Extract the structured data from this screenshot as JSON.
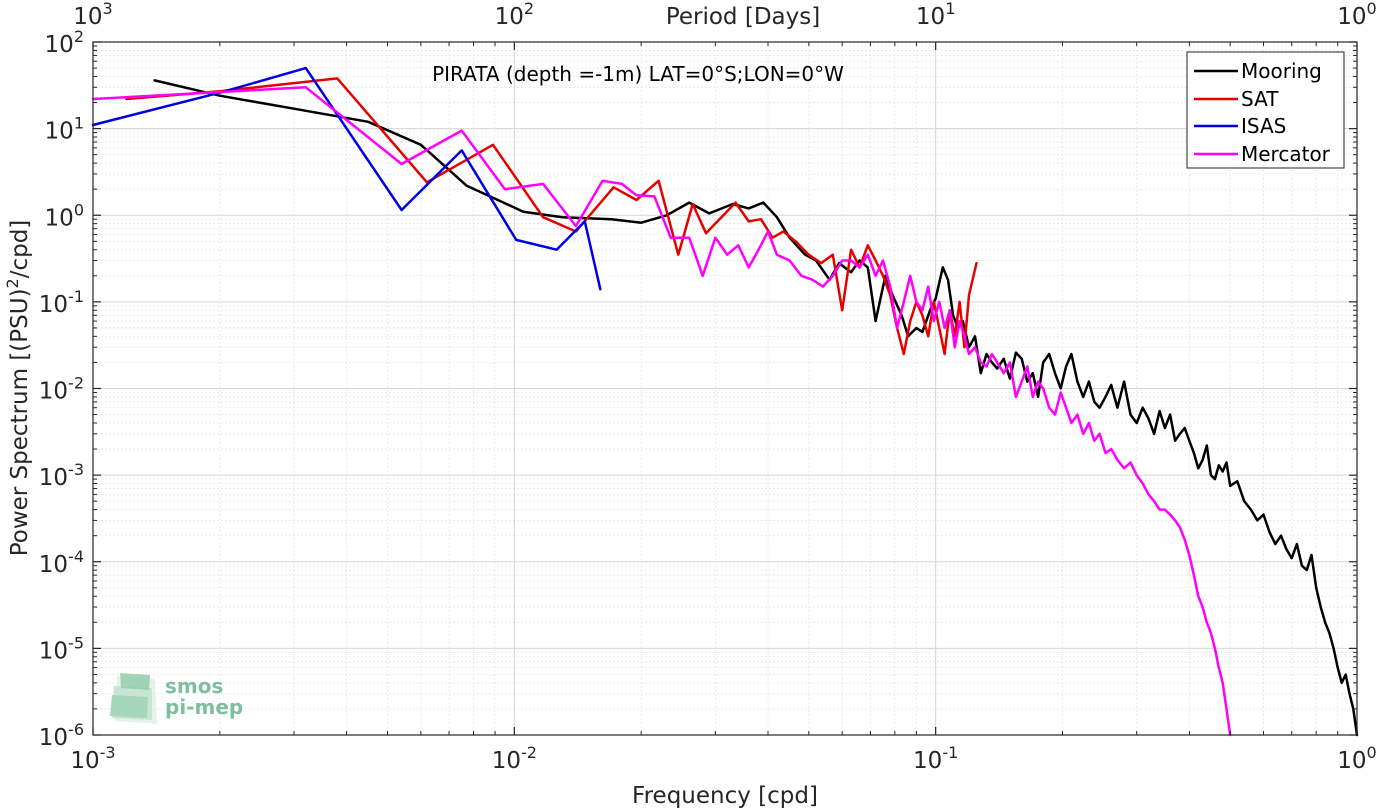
{
  "chart_data": {
    "type": "line",
    "title": "PIRATA (depth =-1m) LAT=0°S;LON=0°W",
    "xlabel": "Frequency [cpd]",
    "x2label": "Period [Days]",
    "ylabel_main": "Power Spectrum [(PSU)",
    "ylabel_sup": "2",
    "ylabel_tail": "/cpd]",
    "xscale": "log",
    "yscale": "log",
    "xlim": [
      0.001,
      1
    ],
    "ylim": [
      1e-06,
      100
    ],
    "grid": true,
    "legend_position": "top-right",
    "x_ticks": [
      {
        "value": 0.001,
        "base": "10",
        "exp": "-3"
      },
      {
        "value": 0.01,
        "base": "10",
        "exp": "-2"
      },
      {
        "value": 0.1,
        "base": "10",
        "exp": "-1"
      },
      {
        "value": 1,
        "base": "10",
        "exp": "0"
      }
    ],
    "x2_ticks": [
      {
        "value": 0.001,
        "base": "10",
        "exp": "3"
      },
      {
        "value": 0.01,
        "base": "10",
        "exp": "2"
      },
      {
        "value": 0.1,
        "base": "10",
        "exp": "1"
      },
      {
        "value": 1,
        "base": "10",
        "exp": "0"
      }
    ],
    "y_ticks": [
      {
        "value": 100,
        "base": "10",
        "exp": "2"
      },
      {
        "value": 10,
        "base": "10",
        "exp": "1"
      },
      {
        "value": 1,
        "base": "10",
        "exp": "0"
      },
      {
        "value": 0.1,
        "base": "10",
        "exp": "-1"
      },
      {
        "value": 0.01,
        "base": "10",
        "exp": "-2"
      },
      {
        "value": 0.001,
        "base": "10",
        "exp": "-3"
      },
      {
        "value": 0.0001,
        "base": "10",
        "exp": "-4"
      },
      {
        "value": 1e-05,
        "base": "10",
        "exp": "-5"
      },
      {
        "value": 1e-06,
        "base": "10",
        "exp": "-6"
      }
    ],
    "series": [
      {
        "name": "Mooring",
        "color": "#000000",
        "x": [
          0.0014,
          0.002,
          0.003,
          0.0045,
          0.006,
          0.0077,
          0.0105,
          0.013,
          0.017,
          0.02,
          0.023,
          0.026,
          0.029,
          0.033,
          0.036,
          0.039,
          0.042,
          0.045,
          0.049,
          0.052,
          0.056,
          0.059,
          0.063,
          0.066,
          0.069,
          0.072,
          0.076,
          0.079,
          0.083,
          0.086,
          0.09,
          0.093,
          0.097,
          0.1,
          0.104,
          0.107,
          0.11,
          0.113,
          0.116,
          0.12,
          0.124,
          0.128,
          0.132,
          0.136,
          0.14,
          0.145,
          0.15,
          0.155,
          0.16,
          0.165,
          0.17,
          0.175,
          0.18,
          0.186,
          0.192,
          0.198,
          0.204,
          0.21,
          0.217,
          0.224,
          0.231,
          0.238,
          0.245,
          0.253,
          0.261,
          0.27,
          0.28,
          0.29,
          0.3,
          0.31,
          0.32,
          0.33,
          0.34,
          0.35,
          0.36,
          0.37,
          0.38,
          0.39,
          0.4,
          0.41,
          0.42,
          0.43,
          0.44,
          0.45,
          0.46,
          0.47,
          0.48,
          0.49,
          0.5,
          0.52,
          0.54,
          0.56,
          0.58,
          0.6,
          0.62,
          0.64,
          0.66,
          0.68,
          0.7,
          0.72,
          0.74,
          0.76,
          0.78,
          0.8,
          0.82,
          0.84,
          0.86,
          0.88,
          0.9,
          0.92,
          0.94,
          0.96,
          0.98,
          1.0
        ],
        "y": [
          36,
          24,
          17,
          12,
          6.5,
          2.2,
          1.1,
          0.95,
          0.9,
          0.82,
          1.0,
          1.4,
          1.05,
          1.35,
          1.2,
          1.4,
          0.95,
          0.55,
          0.35,
          0.3,
          0.18,
          0.28,
          0.22,
          0.3,
          0.25,
          0.06,
          0.2,
          0.12,
          0.07,
          0.04,
          0.05,
          0.045,
          0.08,
          0.11,
          0.25,
          0.18,
          0.07,
          0.05,
          0.06,
          0.03,
          0.04,
          0.015,
          0.025,
          0.02,
          0.017,
          0.022,
          0.013,
          0.026,
          0.022,
          0.012,
          0.015,
          0.008,
          0.02,
          0.025,
          0.015,
          0.01,
          0.018,
          0.025,
          0.012,
          0.008,
          0.012,
          0.007,
          0.006,
          0.008,
          0.011,
          0.006,
          0.012,
          0.005,
          0.004,
          0.006,
          0.0045,
          0.003,
          0.0055,
          0.0035,
          0.005,
          0.0025,
          0.003,
          0.0035,
          0.0025,
          0.0018,
          0.0012,
          0.0015,
          0.0022,
          0.001,
          0.0009,
          0.0013,
          0.0011,
          0.0014,
          0.00075,
          0.00085,
          0.0005,
          0.0004,
          0.0003,
          0.00035,
          0.00022,
          0.00016,
          0.0002,
          0.00014,
          0.00011,
          0.00016,
          9e-05,
          8e-05,
          0.00012,
          5e-05,
          3e-05,
          2e-05,
          1.5e-05,
          1e-05,
          6e-06,
          4e-06,
          5e-06,
          3e-06,
          2e-06,
          1e-06
        ]
      },
      {
        "name": "SAT",
        "color": "#e60000",
        "x": [
          0.0012,
          0.002,
          0.0038,
          0.0062,
          0.0089,
          0.0117,
          0.014,
          0.0172,
          0.0195,
          0.022,
          0.0245,
          0.0265,
          0.0285,
          0.031,
          0.0335,
          0.036,
          0.0385,
          0.041,
          0.0435,
          0.0465,
          0.05,
          0.0535,
          0.057,
          0.06,
          0.063,
          0.066,
          0.069,
          0.072,
          0.075,
          0.078,
          0.081,
          0.084,
          0.087,
          0.09,
          0.093,
          0.096,
          0.099,
          0.102,
          0.105,
          0.108,
          0.111,
          0.114,
          0.117,
          0.12,
          0.125
        ],
        "y": [
          22,
          27,
          38,
          2.4,
          6.5,
          0.95,
          0.65,
          2.1,
          1.5,
          2.5,
          0.35,
          1.35,
          0.62,
          0.95,
          1.4,
          0.85,
          0.9,
          0.55,
          0.65,
          0.5,
          0.35,
          0.28,
          0.35,
          0.08,
          0.4,
          0.25,
          0.45,
          0.3,
          0.2,
          0.12,
          0.05,
          0.025,
          0.06,
          0.1,
          0.07,
          0.04,
          0.1,
          0.05,
          0.025,
          0.08,
          0.04,
          0.1,
          0.03,
          0.12,
          0.28
        ]
      },
      {
        "name": "ISAS",
        "color": "#0000e6",
        "x": [
          0.001,
          0.002,
          0.0032,
          0.0054,
          0.0075,
          0.0101,
          0.0126,
          0.0147,
          0.016
        ],
        "y": [
          11,
          26,
          50,
          1.15,
          5.6,
          0.52,
          0.4,
          0.85,
          0.14
        ]
      },
      {
        "name": "Mercator",
        "color": "#ff00ff",
        "x": [
          0.001,
          0.0032,
          0.0054,
          0.0075,
          0.0095,
          0.0117,
          0.014,
          0.0162,
          0.018,
          0.0195,
          0.0215,
          0.0235,
          0.026,
          0.028,
          0.03,
          0.032,
          0.034,
          0.036,
          0.038,
          0.04,
          0.042,
          0.045,
          0.048,
          0.051,
          0.054,
          0.057,
          0.06,
          0.063,
          0.066,
          0.069,
          0.072,
          0.075,
          0.078,
          0.081,
          0.084,
          0.087,
          0.09,
          0.093,
          0.096,
          0.099,
          0.102,
          0.105,
          0.108,
          0.111,
          0.114,
          0.117,
          0.12,
          0.124,
          0.128,
          0.132,
          0.136,
          0.14,
          0.145,
          0.15,
          0.155,
          0.16,
          0.165,
          0.17,
          0.175,
          0.18,
          0.186,
          0.192,
          0.198,
          0.204,
          0.21,
          0.217,
          0.224,
          0.231,
          0.238,
          0.245,
          0.253,
          0.261,
          0.27,
          0.28,
          0.29,
          0.3,
          0.31,
          0.32,
          0.33,
          0.34,
          0.35,
          0.36,
          0.37,
          0.38,
          0.39,
          0.4,
          0.41,
          0.42,
          0.43,
          0.44,
          0.45,
          0.46,
          0.47,
          0.48,
          0.49,
          0.5
        ],
        "y": [
          22,
          30,
          3.9,
          9.5,
          2.0,
          2.3,
          0.75,
          2.5,
          2.3,
          1.7,
          1.65,
          0.55,
          0.55,
          0.2,
          0.55,
          0.35,
          0.45,
          0.25,
          0.4,
          0.65,
          0.35,
          0.3,
          0.2,
          0.18,
          0.15,
          0.2,
          0.3,
          0.3,
          0.25,
          0.35,
          0.2,
          0.3,
          0.15,
          0.05,
          0.1,
          0.2,
          0.1,
          0.08,
          0.15,
          0.06,
          0.1,
          0.05,
          0.08,
          0.03,
          0.06,
          0.04,
          0.025,
          0.03,
          0.02,
          0.018,
          0.025,
          0.02,
          0.015,
          0.02,
          0.008,
          0.012,
          0.018,
          0.008,
          0.012,
          0.01,
          0.006,
          0.005,
          0.009,
          0.006,
          0.004,
          0.005,
          0.003,
          0.004,
          0.0025,
          0.003,
          0.0018,
          0.002,
          0.0015,
          0.0012,
          0.0014,
          0.001,
          0.0008,
          0.0006,
          0.0005,
          0.0004,
          0.0004,
          0.00035,
          0.0003,
          0.00025,
          0.00018,
          0.00012,
          7e-05,
          4e-05,
          3e-05,
          2e-05,
          1.5e-05,
          1e-05,
          6e-06,
          4e-06,
          2e-06,
          1e-06
        ]
      }
    ]
  },
  "logo": {
    "line1": "smos",
    "line2": "pi-mep"
  }
}
